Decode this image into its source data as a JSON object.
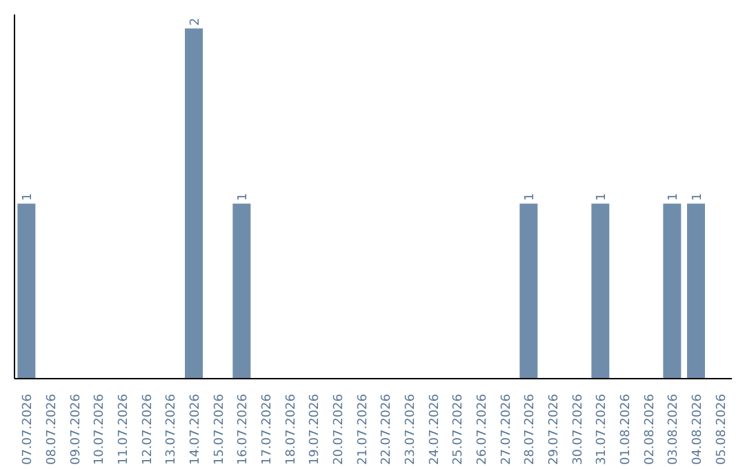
{
  "chart_data": {
    "type": "bar",
    "categories": [
      "07.07.2026",
      "08.07.2026",
      "09.07.2026",
      "10.07.2026",
      "11.07.2026",
      "12.07.2026",
      "13.07.2026",
      "14.07.2026",
      "15.07.2026",
      "16.07.2026",
      "17.07.2026",
      "18.07.2026",
      "19.07.2026",
      "20.07.2026",
      "21.07.2026",
      "22.07.2026",
      "23.07.2026",
      "24.07.2026",
      "25.07.2026",
      "26.07.2026",
      "27.07.2026",
      "28.07.2026",
      "29.07.2026",
      "30.07.2026",
      "31.07.2026",
      "01.08.2026",
      "02.08.2026",
      "03.08.2026",
      "04.08.2026",
      "05.08.2026"
    ],
    "values": [
      1,
      0,
      0,
      0,
      0,
      0,
      0,
      2,
      0,
      1,
      0,
      0,
      0,
      0,
      0,
      0,
      0,
      0,
      0,
      0,
      0,
      1,
      0,
      0,
      1,
      0,
      0,
      1,
      1,
      0
    ],
    "value_labels": [
      "1",
      null,
      null,
      null,
      null,
      null,
      null,
      "2",
      null,
      "1",
      null,
      null,
      null,
      null,
      null,
      null,
      null,
      null,
      null,
      null,
      null,
      "1",
      null,
      null,
      "1",
      null,
      null,
      "1",
      "1",
      null
    ],
    "color": "#6f8dab",
    "ylim": [
      0,
      2.08
    ],
    "tick_labels": "x",
    "grid": false
  }
}
